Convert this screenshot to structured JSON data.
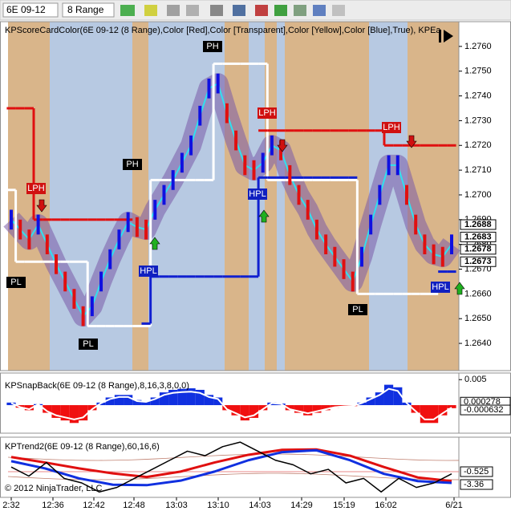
{
  "toolbar": {
    "instrument": "6E 09-12",
    "period": "8 Range"
  },
  "copyright": "© 2012 NinjaTrader, LLC",
  "x_axis": {
    "labels": [
      "2:32",
      "12:36",
      "12:42",
      "12:48",
      "13:03",
      "13:10",
      "14:03",
      "14:29",
      "15:19",
      "16:02",
      "6/21"
    ]
  },
  "chart_data": [
    {
      "type": "range_bar",
      "title": "KPScoreCardColor(6E 09-12 (8 Range),Color [Red],Color [Transparent],Color [Yellow],Color [Blue],True), KPEa",
      "up_color": "#1010e0",
      "down_color": "#e01010",
      "band_color": "#7a5aa8",
      "mid_color": "#30e0f0",
      "values": [
        1.269,
        1.2686,
        1.2682,
        1.2688,
        1.268,
        1.2672,
        1.2665,
        1.2658,
        1.2651,
        1.2655,
        1.2665,
        1.2674,
        1.2682,
        1.2689,
        1.2687,
        1.2686,
        1.2694,
        1.27,
        1.2706,
        1.2713,
        1.272,
        1.2732,
        1.2743,
        1.2745,
        1.2733,
        1.2722,
        1.2712,
        1.271,
        1.2713,
        1.272,
        1.2718,
        1.2708,
        1.27,
        1.2694,
        1.2686,
        1.268,
        1.2675,
        1.267,
        1.2665,
        1.2675,
        1.2688,
        1.27,
        1.2712,
        1.2712,
        1.27,
        1.2688,
        1.268,
        1.2676,
        1.2675,
        1.268
      ],
      "levels": [
        {
          "color": "#ffffff",
          "values": [
            1.2702,
            1.2673,
            1.2673,
            1.2673,
            1.2673,
            1.2673,
            1.2673,
            1.2673,
            1.2673,
            1.2647,
            1.2647,
            1.2647,
            1.2647,
            1.2647,
            1.2647,
            1.2647,
            1.2706,
            1.2706,
            1.2706,
            1.2706,
            1.2706,
            1.2706,
            1.2706,
            1.2753,
            1.2753,
            1.2753,
            1.2753,
            1.2753,
            1.2753,
            1.2706,
            1.2706,
            1.2706,
            1.2706,
            1.2706,
            1.2706,
            1.2706,
            1.2706,
            1.2706,
            1.2706,
            1.266,
            1.266,
            1.266,
            1.266,
            1.266,
            1.266,
            1.266,
            1.266,
            1.266,
            null,
            null
          ]
        },
        {
          "color": "#e01010",
          "values": [
            1.2735,
            1.2735,
            1.2735,
            1.269,
            1.269,
            1.269,
            1.269,
            1.269,
            1.269,
            1.269,
            1.269,
            1.269,
            1.269,
            1.269,
            null,
            null,
            null,
            null,
            null,
            null,
            null,
            null,
            null,
            null,
            null,
            null,
            null,
            null,
            1.2726,
            1.2726,
            1.2726,
            1.2726,
            1.2726,
            1.2726,
            1.2726,
            1.2726,
            1.2726,
            1.2726,
            1.2726,
            1.2726,
            1.2726,
            1.2726,
            1.272,
            1.272,
            1.272,
            1.272,
            1.272,
            1.272,
            1.272,
            1.272
          ]
        },
        {
          "color": "#1020d0",
          "values": [
            null,
            null,
            null,
            null,
            null,
            null,
            null,
            null,
            null,
            null,
            null,
            null,
            null,
            null,
            null,
            1.2648,
            1.2667,
            1.2667,
            1.2667,
            1.2667,
            1.2667,
            1.2667,
            1.2667,
            1.2667,
            1.2667,
            1.2667,
            1.2667,
            1.2667,
            1.2707,
            1.2707,
            1.2707,
            1.2707,
            1.2707,
            1.2707,
            1.2707,
            1.2707,
            1.2707,
            1.2707,
            1.2707,
            null,
            null,
            null,
            null,
            null,
            null,
            null,
            null,
            null,
            1.2669,
            1.2669
          ]
        }
      ],
      "annotations": [
        {
          "text": "PL",
          "color": "#000000"
        },
        {
          "text": "LPH",
          "color": "#d01010"
        },
        {
          "text": "PL",
          "color": "#000000"
        },
        {
          "text": "PH",
          "color": "#000000"
        },
        {
          "text": "HPL",
          "color": "#1020c0"
        },
        {
          "text": "PH",
          "color": "#000000"
        },
        {
          "text": "LPH",
          "color": "#d01010"
        },
        {
          "text": "HPL",
          "color": "#1020c0"
        },
        {
          "text": "LPH",
          "color": "#d01010"
        },
        {
          "text": "PL",
          "color": "#000000"
        },
        {
          "text": "HPL",
          "color": "#1020c0"
        }
      ],
      "ylim": [
        1.2629,
        1.277
      ],
      "yticks": [
        {
          "value": 1.264,
          "label": "1.2640"
        },
        {
          "value": 1.265,
          "label": "1.2650"
        },
        {
          "value": 1.266,
          "label": "1.2660"
        },
        {
          "value": 1.267,
          "label": "1.2670"
        },
        {
          "value": 1.268,
          "label": "1.2680"
        },
        {
          "value": 1.269,
          "label": "1.2690"
        },
        {
          "value": 1.27,
          "label": "1.2700"
        },
        {
          "value": 1.271,
          "label": "1.2710"
        },
        {
          "value": 1.272,
          "label": "1.2720"
        },
        {
          "value": 1.273,
          "label": "1.2730"
        },
        {
          "value": 1.274,
          "label": "1.2740"
        },
        {
          "value": 1.275,
          "label": "1.2750"
        },
        {
          "value": 1.276,
          "label": "1.2760"
        }
      ],
      "price_labels": [
        {
          "value": 1.2688,
          "label": "1.2688"
        },
        {
          "value": 1.2683,
          "label": "1.2683"
        },
        {
          "value": 1.2678,
          "label": "1.2678"
        },
        {
          "value": 1.2673,
          "label": "1.2673"
        }
      ]
    },
    {
      "type": "bar",
      "title": "KPSnapBack(6E 09-12 (8 Range),8,16,3,8,0,0)",
      "pos_color": "#1030e0",
      "neg_color": "#f01010",
      "values": [
        0.0005,
        -0.0005,
        -0.001,
        0.0002,
        -0.0015,
        -0.0025,
        -0.003,
        -0.0035,
        -0.003,
        -0.001,
        0.0005,
        0.0015,
        0.002,
        0.002,
        0.001,
        0.0008,
        0.0015,
        0.0025,
        0.003,
        0.0032,
        0.0033,
        0.003,
        0.002,
        0.0015,
        -0.001,
        -0.002,
        -0.003,
        -0.0025,
        -0.001,
        0.0005,
        0.0003,
        -0.001,
        -0.0015,
        -0.002,
        -0.0015,
        -0.001,
        -0.0005,
        -0.0003,
        -0.0002,
        0.0005,
        0.0015,
        0.0025,
        0.004,
        0.0035,
        0.0005,
        -0.0015,
        -0.0035,
        -0.0035,
        -0.002,
        -0.0006
      ],
      "ylim": [
        -0.0055,
        0.0063
      ],
      "yticks": [
        0.005
      ],
      "last_values": [
        0.000278,
        -0.000632
      ]
    },
    {
      "type": "line",
      "title": "KPTrend2(6E 09-12 (8 Range),60,16,6)",
      "series": [
        {
          "color": "#e01010",
          "values": [
            2.7,
            1.5,
            0.2,
            -0.9,
            -1.7,
            -0.5,
            1.5,
            3.2,
            4.3,
            4.4,
            3.0,
            0.5,
            -1.8,
            -2.6
          ]
        },
        {
          "color": "#1030e0",
          "values": [
            1.8,
            0.2,
            -2.0,
            -3.4,
            -3.5,
            -2.5,
            -0.5,
            2.0,
            3.8,
            4.2,
            2.0,
            -1.0,
            -2.6,
            -3.0
          ]
        },
        {
          "color": "#000000",
          "values": [
            0.5,
            -1.5,
            1.5,
            -2,
            -3,
            -5,
            -4,
            -2,
            0,
            2,
            4,
            3,
            5,
            6,
            4,
            2,
            1,
            -1,
            0,
            -3,
            -2,
            -5,
            -2,
            -4,
            -3,
            -1
          ]
        }
      ],
      "ylim": [
        -6.19,
        7.09
      ],
      "last_values": [
        -0.525,
        -3.36
      ]
    }
  ]
}
